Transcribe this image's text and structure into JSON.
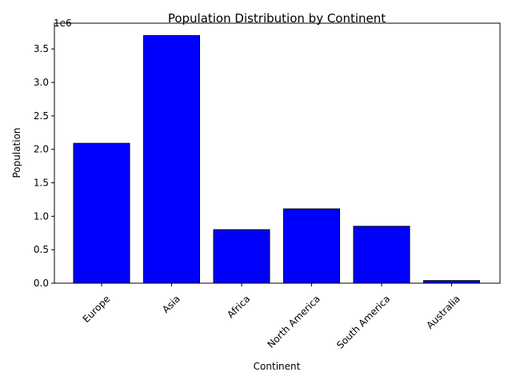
{
  "chart_data": {
    "type": "bar",
    "title": "Population Distribution by Continent",
    "xlabel": "Continent",
    "ylabel": "Population",
    "y_offset_text": "1e6",
    "categories": [
      "Europe",
      "Asia",
      "Africa",
      "North America",
      "South America",
      "Australia"
    ],
    "values": [
      2090000,
      3700000,
      800000,
      1110000,
      850000,
      40000
    ],
    "ylim": [
      0,
      3885000
    ],
    "yticks": [
      0,
      500000,
      1000000,
      1500000,
      2000000,
      2500000,
      3000000,
      3500000
    ],
    "ytick_labels": [
      "0.0",
      "0.5",
      "1.0",
      "1.5",
      "2.0",
      "2.5",
      "3.0",
      "3.5"
    ],
    "bar_color": "#0000ff",
    "edge_color": "#000000",
    "grid": false,
    "x_tick_rotation_deg": 45
  }
}
